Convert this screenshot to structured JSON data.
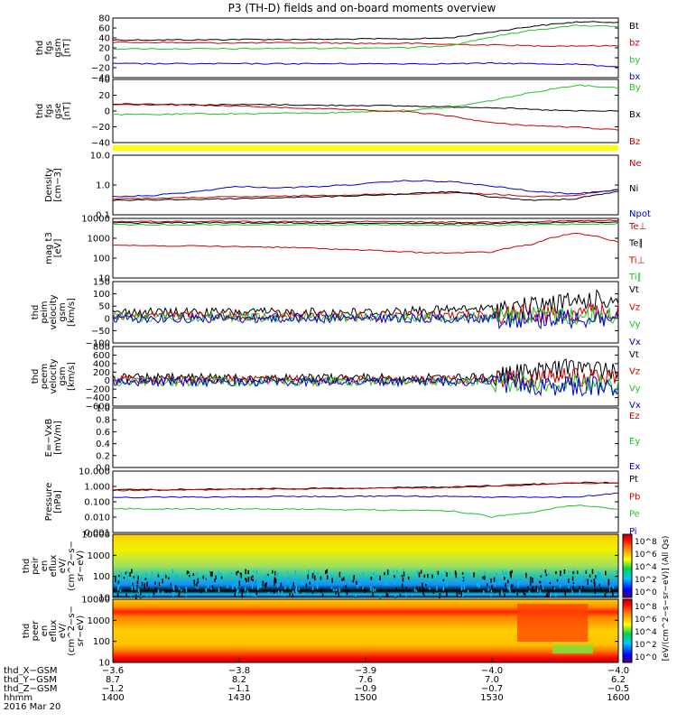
{
  "title": "P3 (TH-D) fields and on-board moments overview",
  "colors": {
    "black": "#000000",
    "red": "#cc0000",
    "green": "#22c422",
    "blue": "#0000d0",
    "yellow": "#ffff00"
  },
  "panels": [
    {
      "id": "fgs-gsm",
      "ylabel": [
        "thd",
        "fgs",
        "gsm",
        "[nT]"
      ],
      "yticks": [
        "80",
        "60",
        "40",
        "20",
        "0",
        "−20",
        "−40"
      ],
      "legend": [
        {
          "t": "Bt",
          "c": "black"
        },
        {
          "t": "bz",
          "c": "red"
        },
        {
          "t": "by",
          "c": "green"
        },
        {
          "t": "bx",
          "c": "blue"
        }
      ]
    },
    {
      "id": "fgs-gse",
      "ylabel": [
        "thd",
        "fgs",
        "gse",
        "[nT]"
      ],
      "yticks": [
        "40",
        "20",
        "0",
        "−20",
        "−40"
      ],
      "legend": [
        {
          "t": "By",
          "c": "green"
        },
        {
          "t": "Bx",
          "c": "black"
        },
        {
          "t": "Bz",
          "c": "red"
        }
      ]
    },
    {
      "id": "density",
      "ylabel": [
        "Density",
        "[cm−3]"
      ],
      "yticks": [
        "10.0",
        "1.0",
        "0.1"
      ],
      "legend": [
        {
          "t": "Ne",
          "c": "red"
        },
        {
          "t": "Ni",
          "c": "black"
        },
        {
          "t": "Npot",
          "c": "blue"
        }
      ]
    },
    {
      "id": "temperature",
      "ylabel": [
        "mag t3",
        "[eV]"
      ],
      "yticks": [
        "10000",
        "1000",
        "100",
        "10"
      ],
      "legend": [
        {
          "t": "Te⊥",
          "c": "red"
        },
        {
          "t": "Te∥",
          "c": "black"
        },
        {
          "t": "Ti⊥",
          "c": "red"
        },
        {
          "t": "Ti∥",
          "c": "green"
        }
      ]
    },
    {
      "id": "peim-velocity",
      "ylabel": [
        "thd",
        "peim",
        "velocity",
        "gsm",
        "[km/s]"
      ],
      "yticks": [
        "150",
        "100",
        "50",
        "0",
        "−50",
        "−100"
      ],
      "legend": [
        {
          "t": "Vt",
          "c": "black"
        },
        {
          "t": "Vz",
          "c": "red"
        },
        {
          "t": "Vy",
          "c": "green"
        },
        {
          "t": "Vx",
          "c": "blue"
        }
      ]
    },
    {
      "id": "peem-velocity",
      "ylabel": [
        "thd",
        "peem",
        "velocity",
        "gsm",
        "[km/s]"
      ],
      "yticks": [
        "800",
        "600",
        "400",
        "200",
        "0",
        "−200",
        "−400",
        "−600"
      ],
      "legend": [
        {
          "t": "Vt",
          "c": "black"
        },
        {
          "t": "Vz",
          "c": "red"
        },
        {
          "t": "Vy",
          "c": "green"
        },
        {
          "t": "Vx",
          "c": "blue"
        }
      ]
    },
    {
      "id": "efield",
      "ylabel": [
        "E=−VxB",
        "[mV/m]"
      ],
      "yticks": [
        "1.0",
        "0.8",
        "0.6",
        "0.4",
        "0.2",
        "0.0"
      ],
      "legend": [
        {
          "t": "Ez",
          "c": "red"
        },
        {
          "t": "Ey",
          "c": "green"
        },
        {
          "t": "Ex",
          "c": "blue"
        }
      ]
    },
    {
      "id": "pressure",
      "ylabel": [
        "Pressure",
        "[nPa]"
      ],
      "yticks": [
        "10.000",
        "1.000",
        "0.100",
        "0.010",
        "0.001"
      ],
      "legend": [
        {
          "t": "Pt",
          "c": "black"
        },
        {
          "t": "Pb",
          "c": "red"
        },
        {
          "t": "Pe",
          "c": "green"
        },
        {
          "t": "Pi",
          "c": "blue"
        }
      ]
    },
    {
      "id": "peir-spec",
      "ylabel": [
        "thd",
        "peir",
        "en",
        "eflux",
        "eV/",
        "(cm^2−s−",
        "sr−eV)"
      ],
      "yticks": [
        "10000",
        "1000",
        "100",
        "10"
      ],
      "legend": []
    },
    {
      "id": "peer-spec",
      "ylabel": [
        "thd",
        "peer",
        "en",
        "eflux",
        "eV/",
        "(cm^2−s−",
        "sr−eV)"
      ],
      "yticks": [
        "10000",
        "1000",
        "100",
        "10"
      ],
      "legend": []
    }
  ],
  "colorbar": {
    "ticks": [
      "10^8",
      "10^6",
      "10^4",
      "10^2",
      "10^0"
    ],
    "label": "[eV/(cm^2−s−sr−eV)] (All Qs)"
  },
  "xaxis": {
    "rows": [
      {
        "label": "thd_X−GSM",
        "values": [
          "−3.6",
          "−3.8",
          "−3.9",
          "−4.0",
          "−4.0"
        ]
      },
      {
        "label": "thd_Y−GSM",
        "values": [
          "8.7",
          "8.2",
          "7.6",
          "7.0",
          "6.2"
        ]
      },
      {
        "label": "thd_Z−GSM",
        "values": [
          "−1.2",
          "−1.1",
          "−0.9",
          "−0.7",
          "−0.5"
        ]
      },
      {
        "label": "hhmm",
        "values": [
          "1400",
          "1430",
          "1500",
          "1530",
          "1600"
        ]
      }
    ],
    "date": "2016 Mar 20"
  },
  "chart_data": {
    "type": "line",
    "title": "P3 (TH-D) fields and on-board moments overview",
    "x_hhmm": [
      1400,
      1410,
      1420,
      1430,
      1440,
      1450,
      1500,
      1510,
      1520,
      1530,
      1540,
      1550,
      1600
    ],
    "panels": [
      {
        "id": "fgs-gsm",
        "ylim": [
          -40,
          80
        ],
        "series": [
          {
            "name": "Bt",
            "values": [
              36,
              36,
              36,
              37,
              37,
              37,
              38,
              38,
              40,
              52,
              64,
              72,
              72
            ]
          },
          {
            "name": "bz",
            "values": [
              31,
              31,
              30,
              30,
              30,
              30,
              29,
              29,
              27,
              26,
              24,
              24,
              24
            ]
          },
          {
            "name": "by",
            "values": [
              18,
              18,
              18,
              18,
              19,
              19,
              20,
              20,
              25,
              42,
              56,
              65,
              63
            ]
          },
          {
            "name": "bx",
            "values": [
              -12,
              -12,
              -12,
              -12,
              -12,
              -12,
              -12,
              -12,
              -12,
              -11,
              -12,
              -13,
              -18
            ]
          }
        ]
      },
      {
        "id": "fgs-gse",
        "ylim": [
          -50,
          40
        ],
        "series": [
          {
            "name": "By",
            "values": [
              -10,
              -10,
              -9,
              -9,
              -8,
              -8,
              -6,
              -4,
              0,
              10,
              22,
              32,
              28
            ]
          },
          {
            "name": "Bx",
            "values": [
              5,
              5,
              4,
              4,
              4,
              3,
              3,
              2,
              1,
              0,
              -3,
              -5,
              -5
            ]
          },
          {
            "name": "Bz",
            "values": [
              4,
              4,
              3,
              2,
              0,
              -2,
              -4,
              -6,
              -12,
              -22,
              -26,
              -28,
              -32
            ]
          }
        ]
      },
      {
        "id": "density",
        "ylim": [
          0.1,
          10
        ],
        "log": true,
        "series": [
          {
            "name": "Ne",
            "values": [
              0.35,
              0.36,
              0.38,
              0.4,
              0.42,
              0.45,
              0.48,
              0.5,
              0.55,
              0.5,
              0.4,
              0.45,
              0.7
            ]
          },
          {
            "name": "Ni",
            "values": [
              0.3,
              0.32,
              0.33,
              0.35,
              0.38,
              0.4,
              0.45,
              0.5,
              0.6,
              0.4,
              0.3,
              0.35,
              0.6
            ]
          },
          {
            "name": "Npot",
            "values": [
              0.4,
              0.45,
              0.6,
              0.9,
              0.8,
              0.9,
              1.1,
              1.4,
              1.3,
              0.9,
              0.6,
              0.5,
              0.7
            ]
          }
        ]
      },
      {
        "id": "temperature",
        "ylim": [
          10,
          10000
        ],
        "log": true,
        "series": [
          {
            "name": "Te⊥",
            "values": [
              7000,
              7000,
              7000,
              6800,
              6800,
              6800,
              6800,
              6800,
              6500,
              6500,
              7000,
              7500,
              7800
            ]
          },
          {
            "name": "Te∥",
            "values": [
              6000,
              6000,
              6000,
              6000,
              6000,
              5800,
              5800,
              5800,
              5500,
              5500,
              6000,
              6500,
              6800
            ]
          },
          {
            "name": "Ti⊥",
            "values": [
              450,
              420,
              400,
              380,
              350,
              300,
              250,
              200,
              180,
              200,
              500,
              1800,
              600
            ]
          },
          {
            "name": "Ti∥",
            "values": [
              4800,
              4800,
              4800,
              4800,
              4800,
              4700,
              4700,
              4700,
              4500,
              4500,
              4800,
              5200,
              5500
            ]
          }
        ]
      },
      {
        "id": "peim-velocity",
        "ylim": [
          -100,
          150
        ],
        "series": [
          {
            "name": "Vt",
            "values": [
              25,
              25,
              25,
              25,
              25,
              25,
              25,
              30,
              35,
              40,
              50,
              70,
              80
            ]
          },
          {
            "name": "Vz",
            "values": [
              10,
              10,
              10,
              10,
              10,
              10,
              10,
              10,
              12,
              15,
              18,
              20,
              25
            ]
          },
          {
            "name": "Vy",
            "values": [
              5,
              5,
              5,
              5,
              5,
              5,
              5,
              5,
              5,
              8,
              10,
              10,
              10
            ]
          },
          {
            "name": "Vx",
            "values": [
              0,
              0,
              0,
              0,
              0,
              0,
              0,
              0,
              0,
              0,
              0,
              0,
              0
            ]
          }
        ]
      },
      {
        "id": "peem-velocity",
        "ylim": [
          -600,
          800
        ],
        "series": [
          {
            "name": "Vt",
            "values": [
              60,
              60,
              60,
              60,
              60,
              60,
              60,
              60,
              60,
              80,
              200,
              300,
              250
            ]
          },
          {
            "name": "Vz",
            "values": [
              20,
              20,
              20,
              20,
              20,
              20,
              20,
              20,
              20,
              30,
              60,
              80,
              60
            ]
          },
          {
            "name": "Vy",
            "values": [
              -20,
              -20,
              -20,
              -20,
              -20,
              -20,
              -20,
              -20,
              -20,
              -30,
              -60,
              -80,
              -60
            ]
          },
          {
            "name": "Vx",
            "values": [
              -30,
              -30,
              -30,
              -30,
              -30,
              -30,
              -30,
              -30,
              -30,
              -40,
              -100,
              -150,
              -120
            ]
          }
        ]
      },
      {
        "id": "efield",
        "ylim": [
          0,
          1
        ],
        "series": []
      },
      {
        "id": "pressure",
        "ylim": [
          0.001,
          10
        ],
        "log": true,
        "series": [
          {
            "name": "Pt",
            "values": [
              0.6,
              0.62,
              0.65,
              0.7,
              0.72,
              0.75,
              0.8,
              0.85,
              0.9,
              1.1,
              1.4,
              1.8,
              1.7
            ]
          },
          {
            "name": "Pb",
            "values": [
              0.55,
              0.58,
              0.6,
              0.65,
              0.68,
              0.7,
              0.75,
              0.8,
              0.85,
              1.0,
              1.3,
              1.7,
              1.6
            ]
          },
          {
            "name": "Pe",
            "values": [
              0.035,
              0.035,
              0.034,
              0.034,
              0.033,
              0.032,
              0.03,
              0.028,
              0.025,
              0.01,
              0.02,
              0.06,
              0.03
            ]
          },
          {
            "name": "Pi",
            "values": [
              0.18,
              0.2,
              0.2,
              0.21,
              0.22,
              0.22,
              0.23,
              0.23,
              0.22,
              0.2,
              0.2,
              0.2,
              0.35
            ]
          }
        ]
      }
    ]
  }
}
